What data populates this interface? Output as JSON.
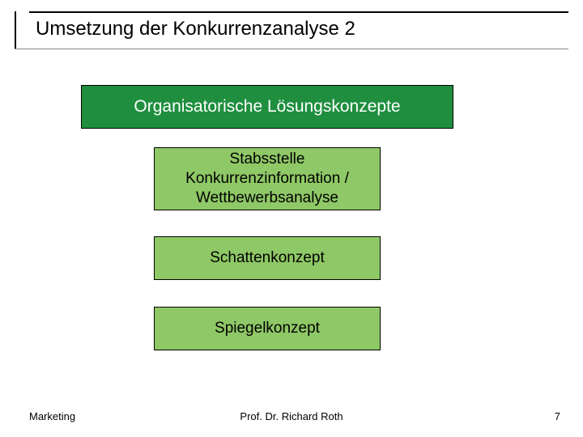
{
  "colors": {
    "header_bg": "#1f8f3f",
    "sub_bg": "#8fc866",
    "text_dark": "#000000",
    "text_light": "#ffffff"
  },
  "title": "Umsetzung der Konkurrenzanalyse 2",
  "header_box": "Organisatorische Lösungskonzepte",
  "box_a": "Stabsstelle Konkurrenzinformation / Wettbewerbsanalyse",
  "box_b": "Schattenkonzept",
  "box_c": "Spiegelkonzept",
  "footer": {
    "left": "Marketing",
    "center": "Prof. Dr. Richard Roth",
    "page": "7"
  }
}
